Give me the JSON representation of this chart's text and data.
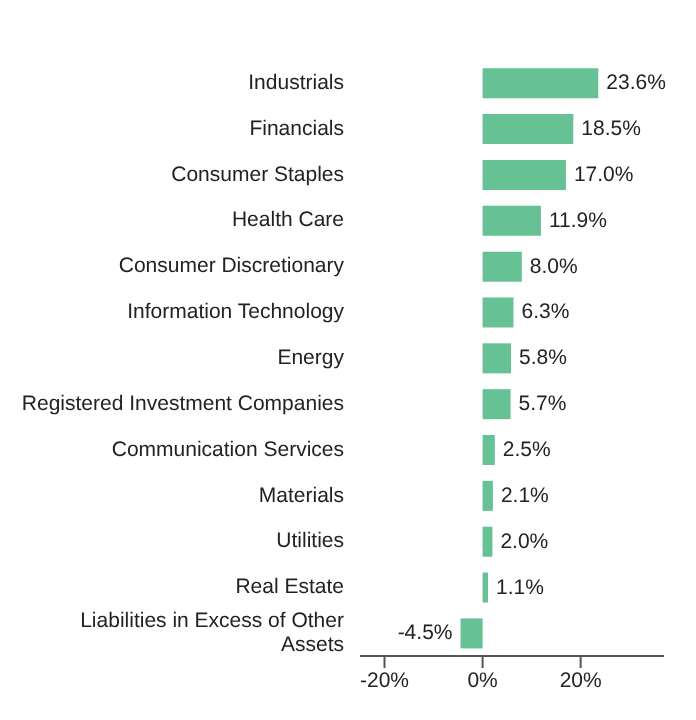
{
  "chart_data": {
    "type": "bar",
    "orientation": "horizontal",
    "categories": [
      "Industrials",
      "Financials",
      "Consumer Staples",
      "Health Care",
      "Consumer Discretionary",
      "Information Technology",
      "Energy",
      "Registered Investment Companies",
      "Communication Services",
      "Materials",
      "Utilities",
      "Real Estate",
      "Liabilities in Excess of Other Assets"
    ],
    "values": [
      23.6,
      18.5,
      17.0,
      11.9,
      8.0,
      6.3,
      5.8,
      5.7,
      2.5,
      2.1,
      2.0,
      1.1,
      -4.5
    ],
    "value_labels": [
      "23.6%",
      "18.5%",
      "17.0%",
      "11.9%",
      "8.0%",
      "6.3%",
      "5.8%",
      "5.7%",
      "2.5%",
      "2.1%",
      "2.0%",
      "1.1%",
      "-4.5%"
    ],
    "color": "#66c194",
    "xlim": [
      -25,
      37
    ],
    "xticks": [
      {
        "value": -20,
        "label": "-20%"
      },
      {
        "value": 0,
        "label": "0%"
      },
      {
        "value": 20,
        "label": "20%"
      }
    ],
    "grid": false,
    "legend": false
  }
}
